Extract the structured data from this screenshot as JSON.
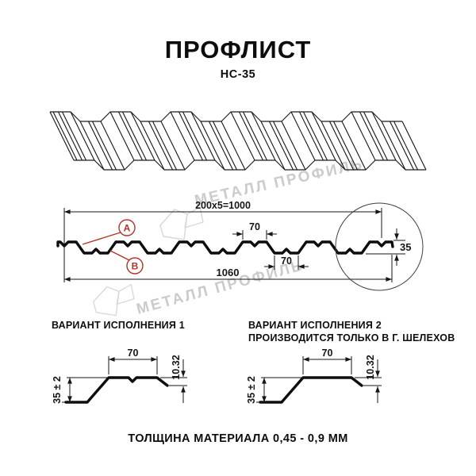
{
  "page": {
    "title": "ПРОФЛИСТ",
    "subtitle": "НС-35",
    "footer": "ТОЛЩИНА МАТЕРИАЛА 0,45 - 0,9 ММ"
  },
  "watermark": {
    "text": "МЕТАЛЛ ПРОФИЛЬ"
  },
  "section": {
    "dim_module": "200x5=1000",
    "dim_crest": "70",
    "dim_valley": "70",
    "dim_total": "1060",
    "dim_height": "35",
    "label_a": "А",
    "label_b": "В"
  },
  "variant1": {
    "title": "ВАРИАНТ ИСПОЛНЕНИЯ 1",
    "dim_top": "70",
    "dim_height": "35 ± 2",
    "dim_lip": "10.32"
  },
  "variant2": {
    "title": "ВАРИАНТ ИСПОЛНЕНИЯ 2",
    "subtitle": "ПРОИЗВОДИТСЯ ТОЛЬКО В Г. ШЕЛЕХОВ",
    "dim_top": "70",
    "dim_height": "35 ± 2",
    "dim_lip": "10.32"
  },
  "colors": {
    "line": "#161616",
    "accent_red": "#b23228",
    "watermark_text": "#cbcbcb",
    "watermark_logo": "#d8d8d8"
  }
}
